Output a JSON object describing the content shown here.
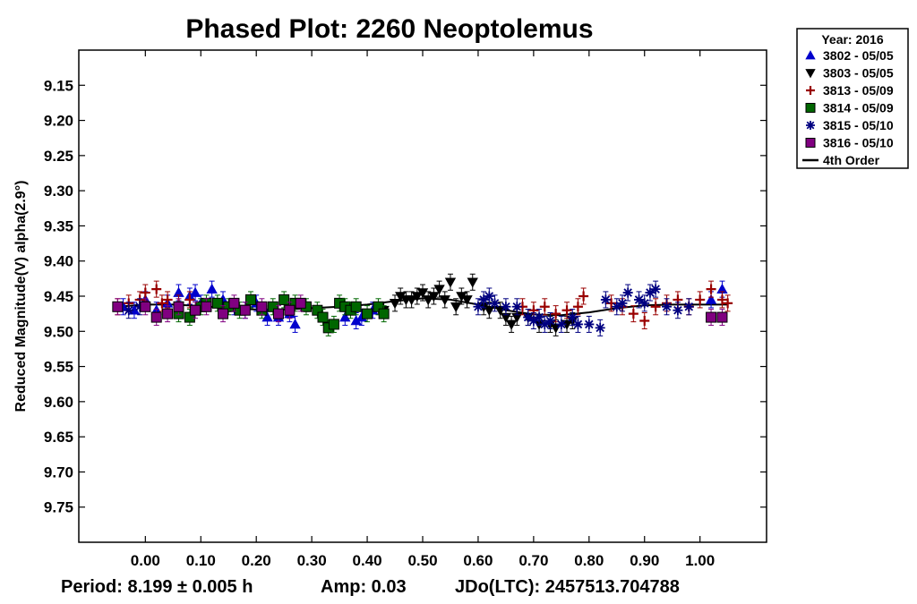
{
  "chart_data": {
    "type": "scatter",
    "title": "Phased Plot: 2260 Neoptolemus",
    "ylabel": "Reduced Magnitude(V) alpha(2.9°)",
    "xlabel": "",
    "xlim": [
      -0.12,
      1.12
    ],
    "ylim": [
      9.8,
      9.1
    ],
    "y_inverted": true,
    "x_ticks": [
      "0.00",
      "0.10",
      "0.20",
      "0.30",
      "0.40",
      "0.50",
      "0.60",
      "0.70",
      "0.80",
      "0.90",
      "1.00"
    ],
    "y_ticks": [
      "9.15",
      "9.20",
      "9.25",
      "9.30",
      "9.35",
      "9.40",
      "9.45",
      "9.50",
      "9.55",
      "9.60",
      "9.65",
      "9.70",
      "9.75"
    ],
    "legend": {
      "title": "Year: 2016",
      "placement": "outside-right-top"
    },
    "footer": {
      "period": "Period: 8.199 ± 0.005 h",
      "amp": "Amp: 0.03",
      "jdo": "JDo(LTC): 2457513.704788"
    },
    "series": [
      {
        "name": "3802 - 05/05",
        "marker": "triangle-up",
        "color": "#0000cc",
        "points": [
          [
            -0.04,
            9.465
          ],
          [
            -0.02,
            9.47
          ],
          [
            0.0,
            9.455
          ],
          [
            0.02,
            9.47
          ],
          [
            0.04,
            9.46
          ],
          [
            0.06,
            9.445
          ],
          [
            0.08,
            9.45
          ],
          [
            0.09,
            9.445
          ],
          [
            0.1,
            9.46
          ],
          [
            0.12,
            9.44
          ],
          [
            0.14,
            9.455
          ],
          [
            0.16,
            9.465
          ],
          [
            0.18,
            9.47
          ],
          [
            0.2,
            9.46
          ],
          [
            0.22,
            9.48
          ],
          [
            0.24,
            9.48
          ],
          [
            0.26,
            9.475
          ],
          [
            0.27,
            9.49
          ],
          [
            0.36,
            9.48
          ],
          [
            0.38,
            9.485
          ],
          [
            0.39,
            9.48
          ],
          [
            0.41,
            9.47
          ],
          [
            1.02,
            9.455
          ],
          [
            1.04,
            9.44
          ]
        ]
      },
      {
        "name": "3803 - 05/05",
        "marker": "triangle-down",
        "color": "#000000",
        "points": [
          [
            0.43,
            9.47
          ],
          [
            0.45,
            9.46
          ],
          [
            0.46,
            9.45
          ],
          [
            0.47,
            9.455
          ],
          [
            0.48,
            9.455
          ],
          [
            0.49,
            9.45
          ],
          [
            0.5,
            9.445
          ],
          [
            0.51,
            9.455
          ],
          [
            0.52,
            9.45
          ],
          [
            0.53,
            9.44
          ],
          [
            0.54,
            9.455
          ],
          [
            0.55,
            9.43
          ],
          [
            0.56,
            9.465
          ],
          [
            0.57,
            9.45
          ],
          [
            0.58,
            9.455
          ],
          [
            0.59,
            9.43
          ],
          [
            0.61,
            9.465
          ],
          [
            0.62,
            9.47
          ],
          [
            0.64,
            9.47
          ],
          [
            0.65,
            9.48
          ],
          [
            0.66,
            9.49
          ],
          [
            0.67,
            9.48
          ],
          [
            0.69,
            9.48
          ],
          [
            0.71,
            9.49
          ],
          [
            0.73,
            9.49
          ],
          [
            0.74,
            9.495
          ],
          [
            0.76,
            9.49
          ],
          [
            0.77,
            9.485
          ]
        ]
      },
      {
        "name": "3813 - 05/09",
        "marker": "plus",
        "color": "#990000",
        "points": [
          [
            -0.05,
            9.465
          ],
          [
            -0.03,
            9.46
          ],
          [
            -0.01,
            9.455
          ],
          [
            0.0,
            9.445
          ],
          [
            0.02,
            9.44
          ],
          [
            0.03,
            9.46
          ],
          [
            0.04,
            9.455
          ],
          [
            0.06,
            9.46
          ],
          [
            0.08,
            9.455
          ],
          [
            0.68,
            9.465
          ],
          [
            0.7,
            9.47
          ],
          [
            0.72,
            9.465
          ],
          [
            0.74,
            9.475
          ],
          [
            0.76,
            9.47
          ],
          [
            0.78,
            9.465
          ],
          [
            0.79,
            9.45
          ],
          [
            0.84,
            9.46
          ],
          [
            0.86,
            9.465
          ],
          [
            0.88,
            9.475
          ],
          [
            0.9,
            9.485
          ],
          [
            0.92,
            9.465
          ],
          [
            0.94,
            9.46
          ],
          [
            0.96,
            9.455
          ],
          [
            0.98,
            9.465
          ],
          [
            1.0,
            9.455
          ],
          [
            1.02,
            9.44
          ],
          [
            1.04,
            9.455
          ],
          [
            1.05,
            9.46
          ]
        ]
      },
      {
        "name": "3814 - 05/09",
        "marker": "square",
        "color": "#006600",
        "points": [
          [
            0.06,
            9.475
          ],
          [
            0.08,
            9.48
          ],
          [
            0.1,
            9.465
          ],
          [
            0.11,
            9.46
          ],
          [
            0.13,
            9.46
          ],
          [
            0.15,
            9.465
          ],
          [
            0.17,
            9.47
          ],
          [
            0.19,
            9.455
          ],
          [
            0.21,
            9.47
          ],
          [
            0.23,
            9.465
          ],
          [
            0.25,
            9.455
          ],
          [
            0.27,
            9.46
          ],
          [
            0.29,
            9.465
          ],
          [
            0.31,
            9.47
          ],
          [
            0.32,
            9.48
          ],
          [
            0.33,
            9.495
          ],
          [
            0.34,
            9.49
          ],
          [
            0.35,
            9.46
          ],
          [
            0.36,
            9.465
          ],
          [
            0.37,
            9.47
          ],
          [
            0.38,
            9.465
          ],
          [
            0.4,
            9.475
          ],
          [
            0.42,
            9.465
          ],
          [
            0.43,
            9.475
          ]
        ]
      },
      {
        "name": "3815 - 05/10",
        "marker": "asterisk",
        "color": "#000080",
        "points": [
          [
            -0.03,
            9.47
          ],
          [
            -0.01,
            9.465
          ],
          [
            0.6,
            9.465
          ],
          [
            0.61,
            9.455
          ],
          [
            0.62,
            9.45
          ],
          [
            0.63,
            9.46
          ],
          [
            0.65,
            9.465
          ],
          [
            0.67,
            9.465
          ],
          [
            0.69,
            9.48
          ],
          [
            0.7,
            9.485
          ],
          [
            0.71,
            9.48
          ],
          [
            0.72,
            9.49
          ],
          [
            0.73,
            9.485
          ],
          [
            0.75,
            9.49
          ],
          [
            0.77,
            9.48
          ],
          [
            0.78,
            9.49
          ],
          [
            0.8,
            9.49
          ],
          [
            0.82,
            9.495
          ],
          [
            0.83,
            9.455
          ],
          [
            0.85,
            9.465
          ],
          [
            0.86,
            9.46
          ],
          [
            0.87,
            9.445
          ],
          [
            0.89,
            9.455
          ],
          [
            0.9,
            9.46
          ],
          [
            0.91,
            9.445
          ],
          [
            0.92,
            9.44
          ],
          [
            0.94,
            9.465
          ],
          [
            0.96,
            9.47
          ],
          [
            0.98,
            9.465
          ]
        ]
      },
      {
        "name": "3816 - 05/10",
        "marker": "square",
        "color": "#800080",
        "points": [
          [
            -0.05,
            9.465
          ],
          [
            0.0,
            9.465
          ],
          [
            0.02,
            9.48
          ],
          [
            0.04,
            9.475
          ],
          [
            0.06,
            9.465
          ],
          [
            0.09,
            9.47
          ],
          [
            0.11,
            9.465
          ],
          [
            0.14,
            9.475
          ],
          [
            0.16,
            9.46
          ],
          [
            0.18,
            9.47
          ],
          [
            0.21,
            9.465
          ],
          [
            0.24,
            9.475
          ],
          [
            0.26,
            9.47
          ],
          [
            0.28,
            9.46
          ],
          [
            1.02,
            9.48
          ],
          [
            1.04,
            9.48
          ]
        ]
      },
      {
        "name": "4th Order",
        "type": "line",
        "color": "#000000",
        "points": [
          [
            -0.05,
            9.465
          ],
          [
            0.0,
            9.462
          ],
          [
            0.05,
            9.462
          ],
          [
            0.1,
            9.464
          ],
          [
            0.15,
            9.467
          ],
          [
            0.2,
            9.469
          ],
          [
            0.25,
            9.469
          ],
          [
            0.3,
            9.467
          ],
          [
            0.35,
            9.465
          ],
          [
            0.4,
            9.462
          ],
          [
            0.45,
            9.457
          ],
          [
            0.5,
            9.453
          ],
          [
            0.55,
            9.455
          ],
          [
            0.6,
            9.462
          ],
          [
            0.65,
            9.47
          ],
          [
            0.7,
            9.476
          ],
          [
            0.75,
            9.477
          ],
          [
            0.8,
            9.473
          ],
          [
            0.85,
            9.467
          ],
          [
            0.9,
            9.463
          ],
          [
            0.95,
            9.462
          ],
          [
            1.0,
            9.462
          ],
          [
            1.05,
            9.462
          ]
        ]
      }
    ]
  }
}
